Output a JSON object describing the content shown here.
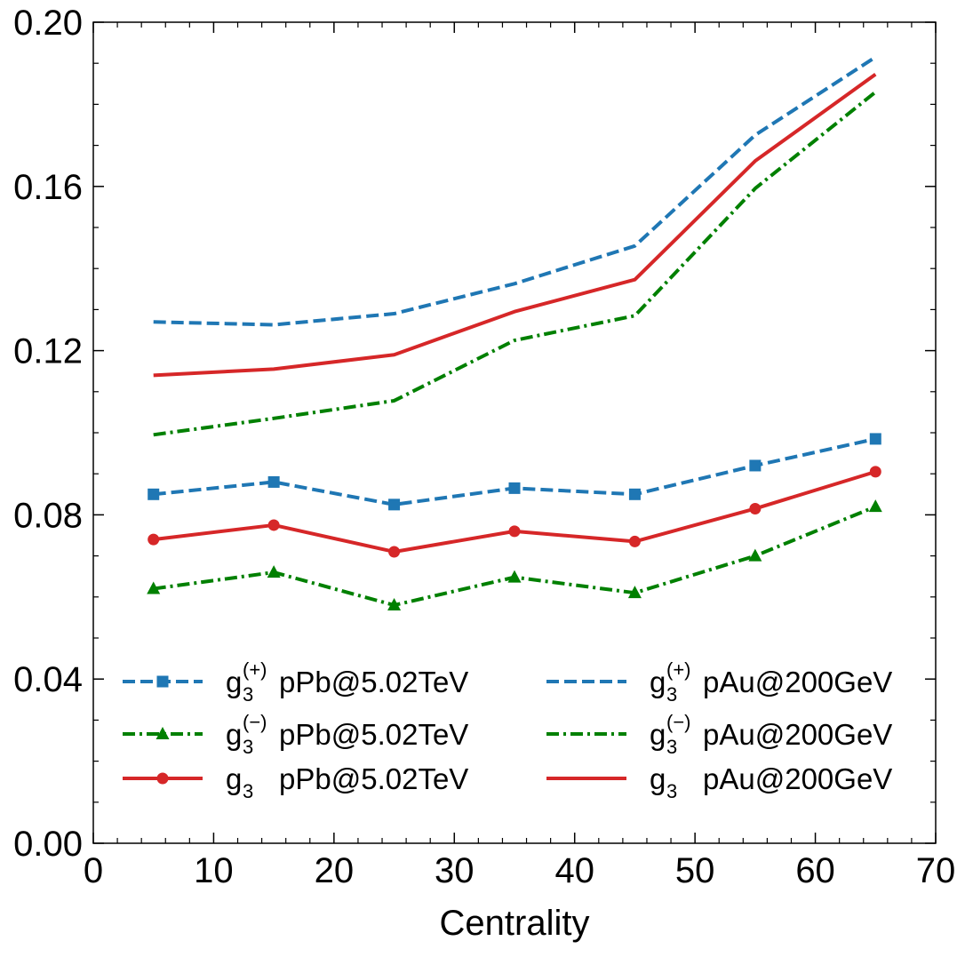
{
  "chart_data": {
    "type": "line",
    "title": "",
    "xlabel": "Centrality",
    "ylabel": "",
    "xlim": [
      0,
      70
    ],
    "ylim": [
      0.0,
      0.2
    ],
    "x_ticks": [
      "0",
      "10",
      "20",
      "30",
      "40",
      "50",
      "60",
      "70"
    ],
    "y_ticks": [
      "0.00",
      "0.04",
      "0.08",
      "0.12",
      "0.16",
      "0.20"
    ],
    "legend_position": "lower-center",
    "x": [
      5,
      15,
      25,
      35,
      45,
      55,
      65
    ],
    "series": [
      {
        "name": "g3(+) pPb@5.02TeV",
        "base": "g",
        "sub": "3",
        "sup": "(+)",
        "label": "pPb@5.02TeV",
        "color": "#1f77b4",
        "line": "dashed",
        "marker": "square",
        "values": [
          0.085,
          0.088,
          0.0825,
          0.0865,
          0.085,
          0.092,
          0.0985
        ]
      },
      {
        "name": "g3(−) pPb@5.02TeV",
        "base": "g",
        "sub": "3",
        "sup": "(−)",
        "label": "pPb@5.02TeV",
        "color": "#008000",
        "line": "dashdot",
        "marker": "triangle",
        "values": [
          0.062,
          0.066,
          0.058,
          0.0648,
          0.061,
          0.07,
          0.082
        ]
      },
      {
        "name": "g3 pPb@5.02TeV",
        "base": "g",
        "sub": "3",
        "sup": "",
        "label": "pPb@5.02TeV",
        "color": "#d62728",
        "line": "solid",
        "marker": "circle",
        "values": [
          0.074,
          0.0775,
          0.071,
          0.076,
          0.0735,
          0.0815,
          0.0905
        ]
      },
      {
        "name": "g3(+) pAu@200GeV",
        "base": "g",
        "sub": "3",
        "sup": "(+)",
        "label": "pAu@200GeV",
        "color": "#1f77b4",
        "line": "dashed",
        "marker": "none",
        "values": [
          0.127,
          0.1263,
          0.129,
          0.1363,
          0.1455,
          0.1725,
          0.1915
        ]
      },
      {
        "name": "g3(−) pAu@200GeV",
        "base": "g",
        "sub": "3",
        "sup": "(−)",
        "label": "pAu@200GeV",
        "color": "#008000",
        "line": "dashdot",
        "marker": "none",
        "values": [
          0.0995,
          0.1035,
          0.1078,
          0.1225,
          0.1285,
          0.1595,
          0.183
        ]
      },
      {
        "name": "g3 pAu@200GeV",
        "base": "g",
        "sub": "3",
        "sup": "",
        "label": "pAu@200GeV",
        "color": "#d62728",
        "line": "solid",
        "marker": "none",
        "values": [
          0.114,
          0.1155,
          0.119,
          0.1295,
          0.1373,
          0.1662,
          0.1873
        ]
      }
    ]
  }
}
